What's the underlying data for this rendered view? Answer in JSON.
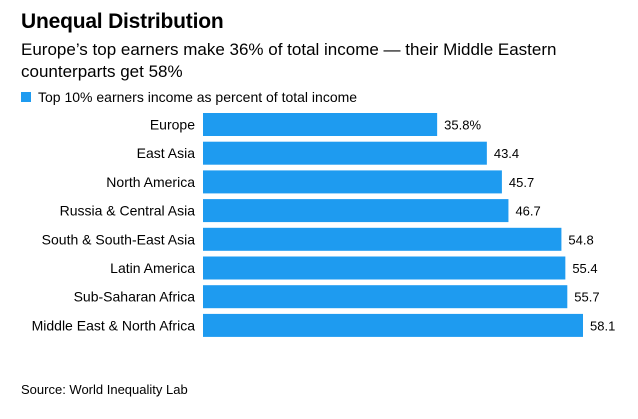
{
  "header": {
    "title": "Unequal Distribution",
    "subtitle": "Europe’s top earners make 36% of total income — their Middle Eastern counterparts get 58%"
  },
  "legend": {
    "label": "Top 10% earners income as percent of total income"
  },
  "footer": {
    "source": "Source: World Inequality Lab"
  },
  "colors": {
    "bar": "#1e9bf0",
    "text": "#000000"
  },
  "chart_data": {
    "type": "bar",
    "orientation": "horizontal",
    "categories": [
      "Europe",
      "East Asia",
      "North America",
      "Russia & Central Asia",
      "South & South-East Asia",
      "Latin America",
      "Sub-Saharan Africa",
      "Middle East & North Africa"
    ],
    "values": [
      35.8,
      43.4,
      45.7,
      46.7,
      54.8,
      55.4,
      55.7,
      58.1
    ],
    "value_labels": [
      "35.8%",
      "43.4",
      "45.7",
      "46.7",
      "54.8",
      "55.4",
      "55.7",
      "58.1"
    ],
    "series": [
      {
        "name": "Top 10% earners income as percent of total income",
        "values": [
          35.8,
          43.4,
          45.7,
          46.7,
          54.8,
          55.4,
          55.7,
          58.1
        ]
      }
    ],
    "xlim": [
      0,
      58.1
    ],
    "grid": false,
    "legend_position": "top-left"
  }
}
